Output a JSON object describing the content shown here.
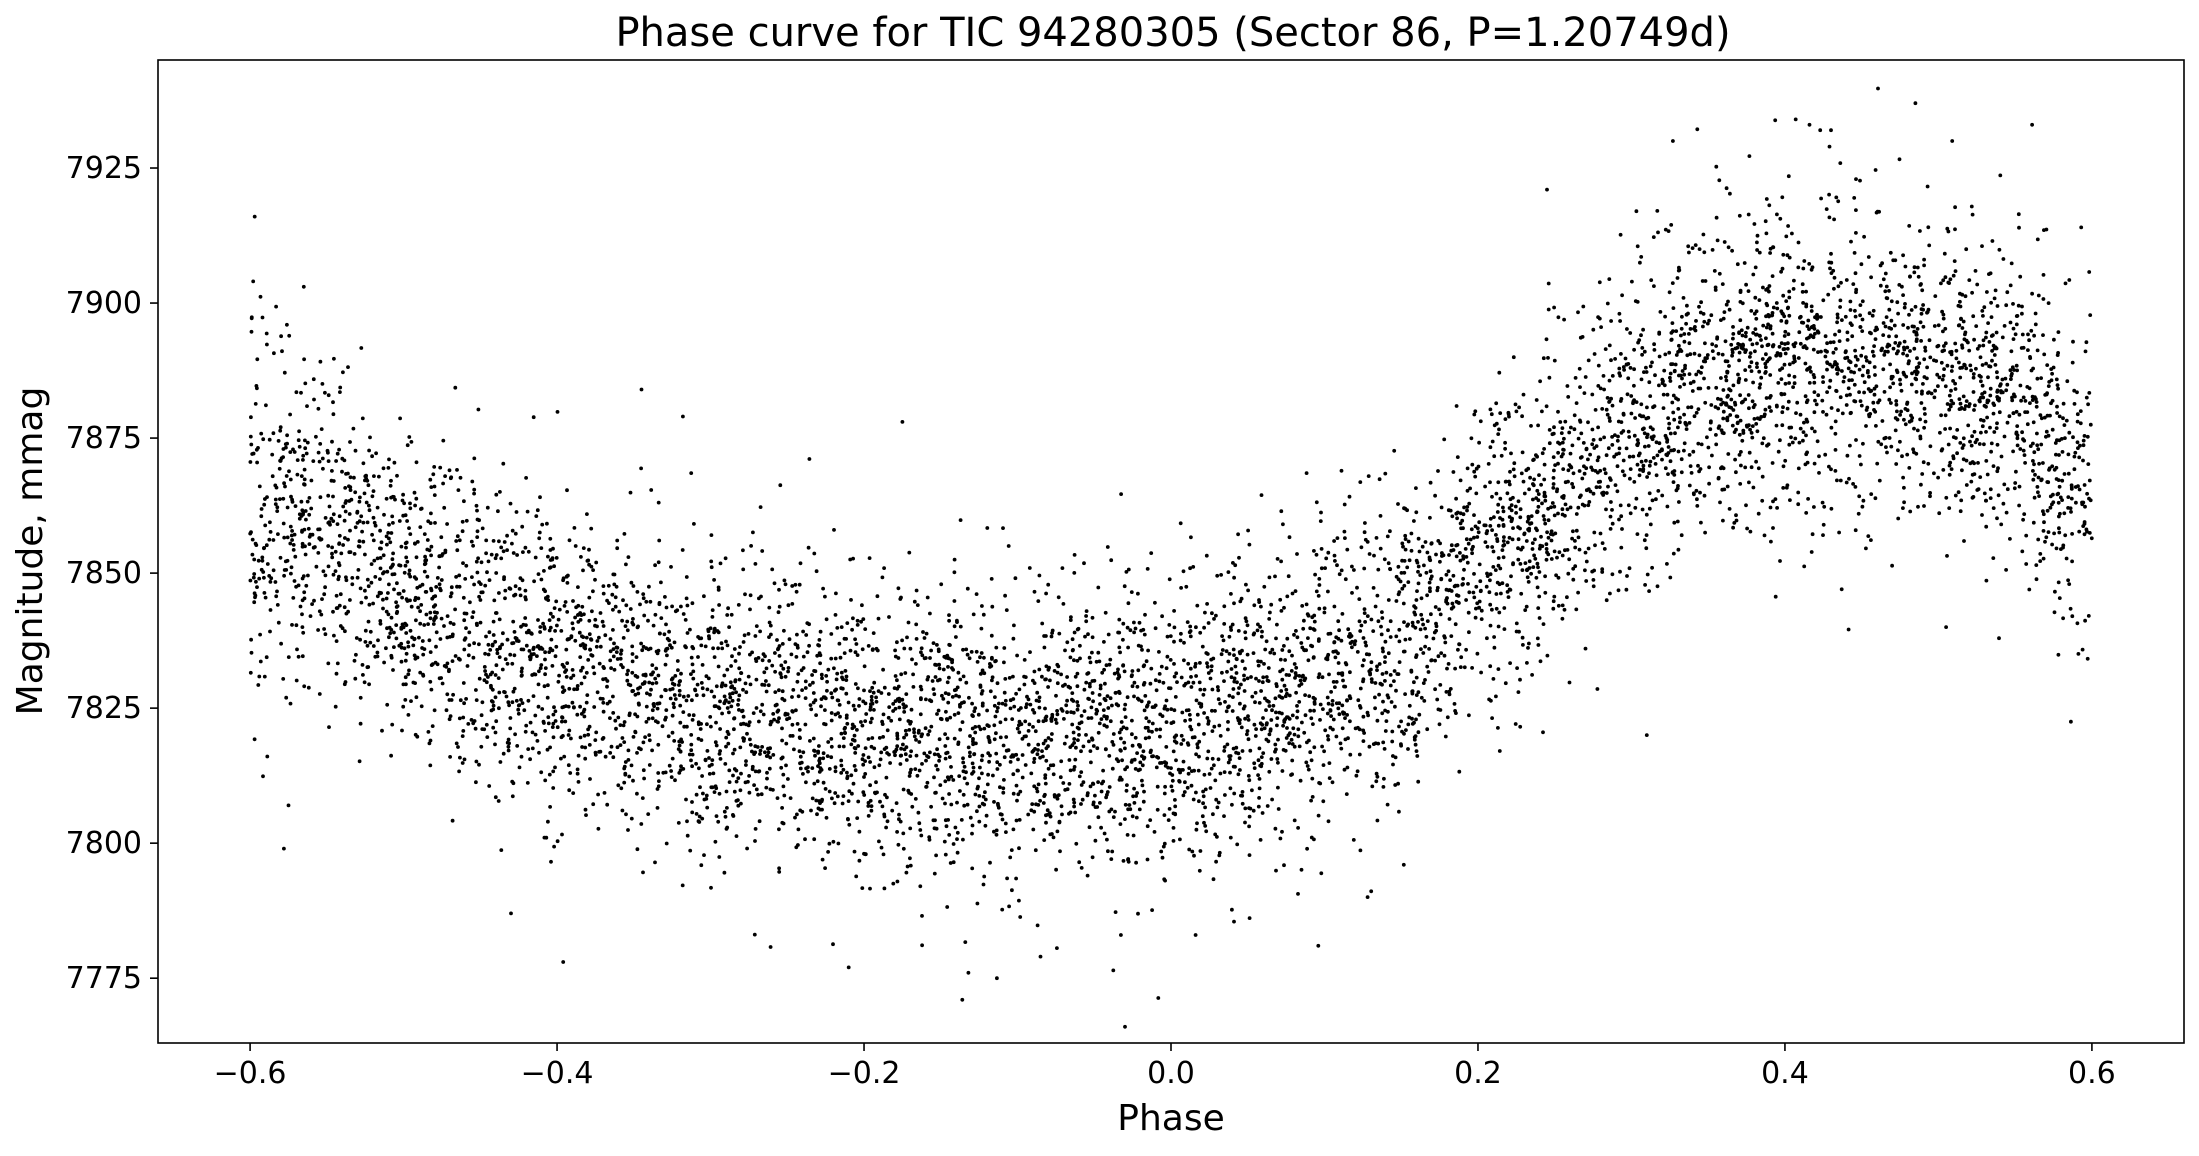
{
  "chart_data": {
    "type": "scatter",
    "title": "Phase curve for TIC 94280305 (Sector 86, P=1.20749d)",
    "xlabel": "Phase",
    "ylabel": "Magnitude, mmag",
    "xlim": [
      -0.66,
      0.66
    ],
    "ylim": [
      7763,
      7945
    ],
    "x_ticks": [
      -0.6,
      -0.4,
      -0.2,
      0.0,
      0.2,
      0.4,
      0.6
    ],
    "x_tick_labels": [
      "−0.6",
      "−0.4",
      "−0.2",
      "0.0",
      "0.2",
      "0.4",
      "0.6"
    ],
    "y_ticks": [
      7775,
      7800,
      7825,
      7850,
      7875,
      7900,
      7925
    ],
    "y_tick_labels": [
      "7775",
      "7800",
      "7825",
      "7850",
      "7875",
      "7900",
      "7925"
    ],
    "grid": false,
    "legend": "none",
    "marker_color": "#000000",
    "series": [
      {
        "x": [
          -0.6,
          -0.55,
          -0.5,
          -0.45,
          -0.4,
          -0.35,
          -0.3,
          -0.25,
          -0.2,
          -0.15,
          -0.1,
          -0.05,
          0.0,
          0.05,
          0.1,
          0.15,
          0.2,
          0.25,
          0.3,
          0.35,
          0.4,
          0.45,
          0.5,
          0.55,
          0.6
        ],
        "y": [
          7862,
          7857,
          7848,
          7839,
          7833,
          7829,
          7826,
          7824,
          7822,
          7821,
          7820,
          7821,
          7822,
          7825,
          7830,
          7838,
          7851,
          7866,
          7877,
          7885,
          7889,
          7890,
          7887,
          7880,
          7868
        ],
        "scatter": [
          18,
          15,
          14,
          14,
          14,
          14,
          14,
          14,
          14,
          14,
          14,
          14,
          14,
          14,
          14,
          14,
          14,
          14,
          14,
          14,
          14,
          14,
          14,
          14,
          16
        ]
      }
    ],
    "outliers": [
      {
        "x": -0.597,
        "y": 7916
      },
      {
        "x": -0.598,
        "y": 7904
      },
      {
        "x": -0.575,
        "y": 7807
      },
      {
        "x": -0.578,
        "y": 7799
      },
      {
        "x": -0.565,
        "y": 7903
      },
      {
        "x": -0.43,
        "y": 7787
      },
      {
        "x": -0.396,
        "y": 7778
      },
      {
        "x": -0.345,
        "y": 7884
      },
      {
        "x": -0.318,
        "y": 7879
      },
      {
        "x": -0.175,
        "y": 7878
      },
      {
        "x": -0.21,
        "y": 7777
      },
      {
        "x": -0.136,
        "y": 7771
      },
      {
        "x": -0.132,
        "y": 7776
      },
      {
        "x": -0.085,
        "y": 7779
      },
      {
        "x": -0.03,
        "y": 7766
      },
      {
        "x": 0.016,
        "y": 7783
      },
      {
        "x": 0.096,
        "y": 7781
      },
      {
        "x": 0.245,
        "y": 7921
      },
      {
        "x": 0.31,
        "y": 7820
      },
      {
        "x": 0.327,
        "y": 7930
      },
      {
        "x": 0.407,
        "y": 7934
      },
      {
        "x": 0.416,
        "y": 7933
      },
      {
        "x": 0.423,
        "y": 7932
      },
      {
        "x": 0.43,
        "y": 7932
      },
      {
        "x": 0.485,
        "y": 7937
      },
      {
        "x": 0.509,
        "y": 7930
      },
      {
        "x": 0.561,
        "y": 7933
      },
      {
        "x": 0.593,
        "y": 7914
      },
      {
        "x": 0.437,
        "y": 7847
      },
      {
        "x": 0.505,
        "y": 7840
      }
    ]
  }
}
